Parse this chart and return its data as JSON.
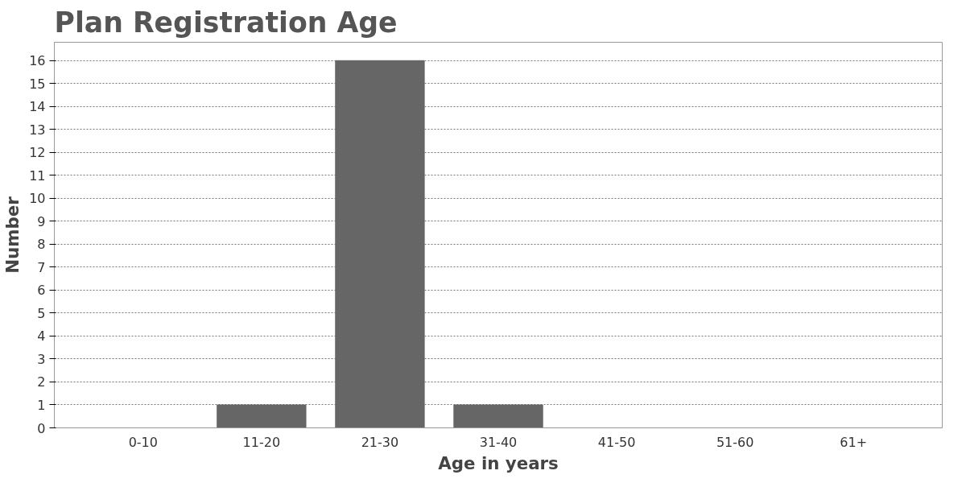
{
  "chart_data": {
    "type": "bar",
    "title": "Plan Registration Age",
    "xlabel": "Age in years",
    "ylabel": "Number",
    "categories": [
      "0-10",
      "11-20",
      "21-30",
      "31-40",
      "41-50",
      "51-60",
      "61+"
    ],
    "values": [
      0,
      1,
      16,
      1,
      0,
      0,
      0
    ],
    "color": "#666666",
    "ylim": [
      0,
      16.8
    ],
    "yticks": [
      0,
      1,
      2,
      3,
      4,
      5,
      6,
      7,
      8,
      9,
      10,
      11,
      12,
      13,
      14,
      15,
      16
    ],
    "grid": "y"
  }
}
